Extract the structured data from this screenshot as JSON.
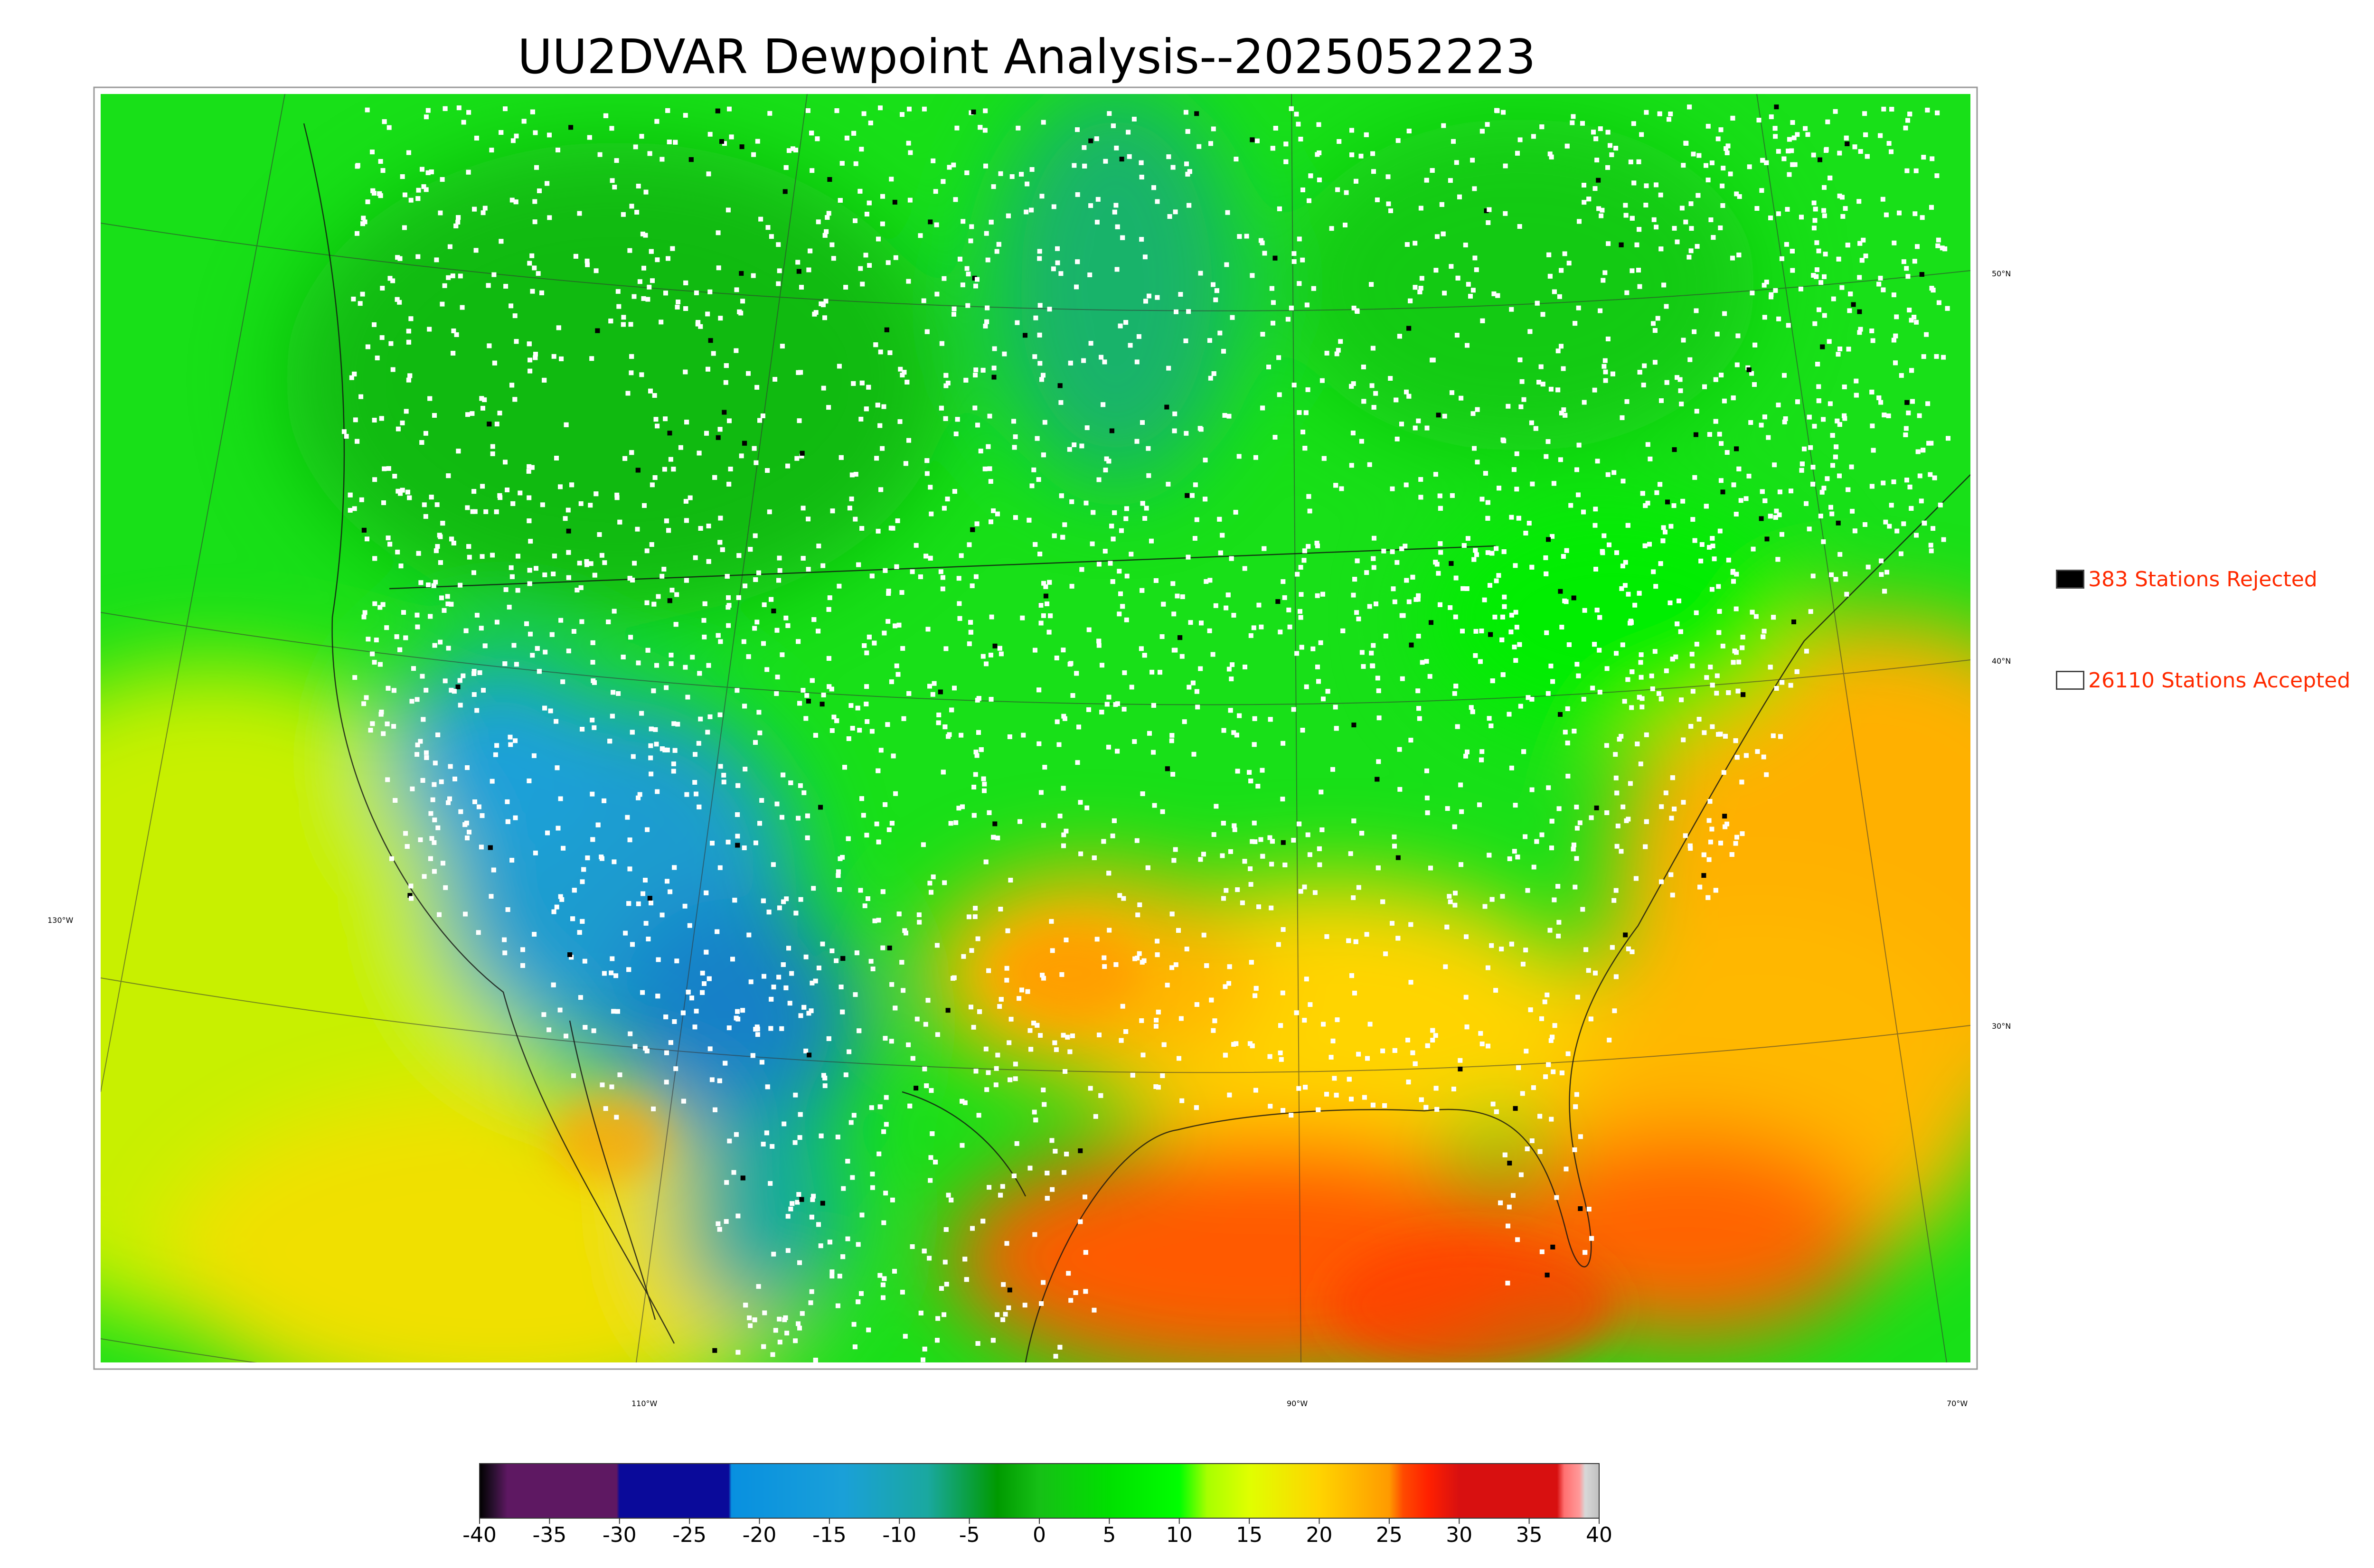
{
  "title": "UU2DVAR Dewpoint Analysis--2025052223",
  "legend": {
    "rejected": {
      "label": "383 Stations Rejected",
      "color": "#000000",
      "icon": "filled-square-icon"
    },
    "accepted": {
      "label": "26110 Stations Accepted",
      "color": "#ffffff",
      "icon": "hollow-square-icon"
    }
  },
  "graticule": {
    "lat_labels": [
      "50°N",
      "40°N",
      "30°N"
    ],
    "lon_labels": [
      "130°W",
      "110°W",
      "90°W",
      "70°W"
    ]
  },
  "colorbar": {
    "ticks": [
      "-40",
      "-35",
      "-30",
      "-25",
      "-20",
      "-15",
      "-10",
      "-5",
      "0",
      "5",
      "10",
      "15",
      "20",
      "25",
      "30",
      "35",
      "40"
    ],
    "min": -40,
    "max": 40,
    "stops": [
      {
        "v": -40,
        "color": "#000000"
      },
      {
        "v": -39,
        "color": "#2a1030"
      },
      {
        "v": -38,
        "color": "#5e1862"
      },
      {
        "v": -30.2,
        "color": "#5e1862"
      },
      {
        "v": -30,
        "color": "#0a0a9a"
      },
      {
        "v": -22.2,
        "color": "#0a0a9a"
      },
      {
        "v": -22,
        "color": "#0890e0"
      },
      {
        "v": -14,
        "color": "#1aa0d8"
      },
      {
        "v": -8,
        "color": "#1aa8a0"
      },
      {
        "v": -3,
        "color": "#009a00"
      },
      {
        "v": 0,
        "color": "#16c016"
      },
      {
        "v": 5,
        "color": "#00e000"
      },
      {
        "v": 10,
        "color": "#00ff00"
      },
      {
        "v": 12,
        "color": "#a8ff00"
      },
      {
        "v": 15,
        "color": "#e0ff00"
      },
      {
        "v": 20,
        "color": "#ffd400"
      },
      {
        "v": 25,
        "color": "#ff9a00"
      },
      {
        "v": 26,
        "color": "#ff4a00"
      },
      {
        "v": 27.8,
        "color": "#ff2000"
      },
      {
        "v": 30,
        "color": "#d81010"
      },
      {
        "v": 37,
        "color": "#d81010"
      },
      {
        "v": 37.5,
        "color": "#ff7070"
      },
      {
        "v": 38.6,
        "color": "#ff9a9a"
      },
      {
        "v": 39,
        "color": "#d8d8d8"
      },
      {
        "v": 40,
        "color": "#c0c0c0"
      }
    ]
  }
}
